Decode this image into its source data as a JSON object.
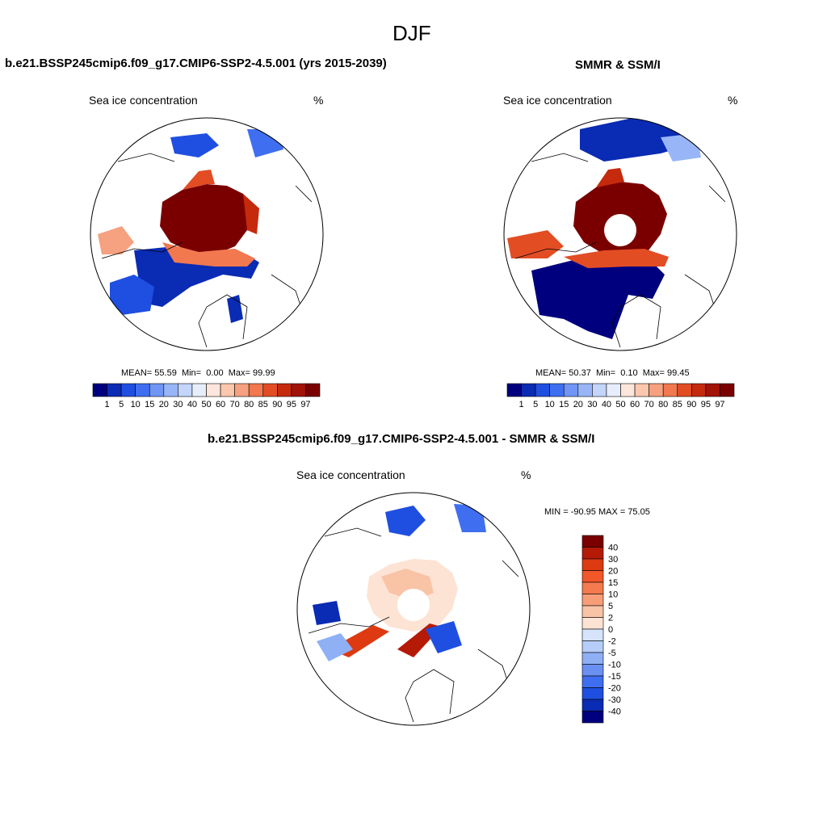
{
  "figure": {
    "title": "DJF",
    "model_title": "b.e21.BSSP245cmip6.f09_g17.CMIP6-SSP2-4.5.001 (yrs 2015-2039)",
    "obs_title": "SMMR & SSM/I",
    "diff_title": "b.e21.BSSP245cmip6.f09_g17.CMIP6-SSP2-4.5.001 - SMMR & SSM/I"
  },
  "chart_data": [
    {
      "type": "heatmap",
      "panel": "model",
      "variable": "Sea ice concentration",
      "units": "%",
      "stats": {
        "mean_label": "MEAN=",
        "mean": "55.59",
        "min_label": "Min=",
        "min": "0.00",
        "max_label": "Max=",
        "max": "99.99"
      },
      "colorbar_levels": [
        "1",
        "5",
        "10",
        "15",
        "20",
        "30",
        "40",
        "50",
        "60",
        "70",
        "80",
        "85",
        "90",
        "95",
        "97"
      ],
      "colorbar_colors": [
        "#00007f",
        "#0a2bb3",
        "#1f4fe0",
        "#3f6ff0",
        "#6f95f5",
        "#98b6f7",
        "#c3d5fa",
        "#e7eefb",
        "#fde6dc",
        "#fbc7ad",
        "#f6a17f",
        "#f2784f",
        "#e24d24",
        "#c52a0d",
        "#a11306",
        "#7a0000"
      ]
    },
    {
      "type": "heatmap",
      "panel": "observations",
      "variable": "Sea ice concentration",
      "units": "%",
      "stats": {
        "mean_label": "MEAN=",
        "mean": "50.37",
        "min_label": "Min=",
        "min": "0.10",
        "max_label": "Max=",
        "max": "99.45"
      },
      "colorbar_levels": [
        "1",
        "5",
        "10",
        "15",
        "20",
        "30",
        "40",
        "50",
        "60",
        "70",
        "80",
        "85",
        "90",
        "95",
        "97"
      ],
      "colorbar_colors": [
        "#00007f",
        "#0a2bb3",
        "#1f4fe0",
        "#3f6ff0",
        "#6f95f5",
        "#98b6f7",
        "#c3d5fa",
        "#e7eefb",
        "#fde6dc",
        "#fbc7ad",
        "#f6a17f",
        "#f2784f",
        "#e24d24",
        "#c52a0d",
        "#a11306",
        "#7a0000"
      ]
    },
    {
      "type": "heatmap",
      "panel": "difference",
      "variable": "Sea ice concentration",
      "units": "%",
      "stats_text": "MIN = -90.95 MAX =  75.05",
      "colorbar_levels": [
        "40",
        "30",
        "20",
        "15",
        "10",
        "5",
        "2",
        "0",
        "-2",
        "-5",
        "-10",
        "-15",
        "-20",
        "-30",
        "-40"
      ],
      "colorbar_colors": [
        "#7a0000",
        "#b51a06",
        "#dd3a12",
        "#f2572a",
        "#f67a4f",
        "#f79e78",
        "#f9c3a6",
        "#fde3d4",
        "#d6e4fb",
        "#b5cdf8",
        "#8fb0f5",
        "#6a90f2",
        "#3f6ff0",
        "#1f4fe0",
        "#0a2bb3",
        "#00007f"
      ]
    }
  ]
}
